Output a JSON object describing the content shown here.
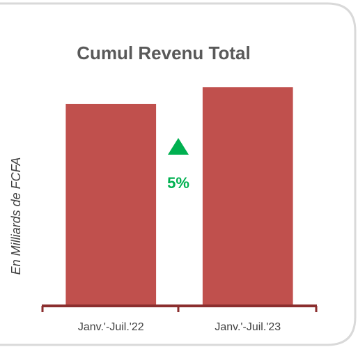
{
  "chart_data": {
    "type": "bar",
    "title": "Cumul Revenu Total",
    "y_label": "En Milliards de FCFA",
    "categories": [
      "Janv.'-Juil.'22",
      "Janv.'-Juil.'23"
    ],
    "values": [
      85,
      92
    ],
    "color": "#c0504d",
    "ylim": [
      0,
      100
    ],
    "annotation": "5%"
  }
}
